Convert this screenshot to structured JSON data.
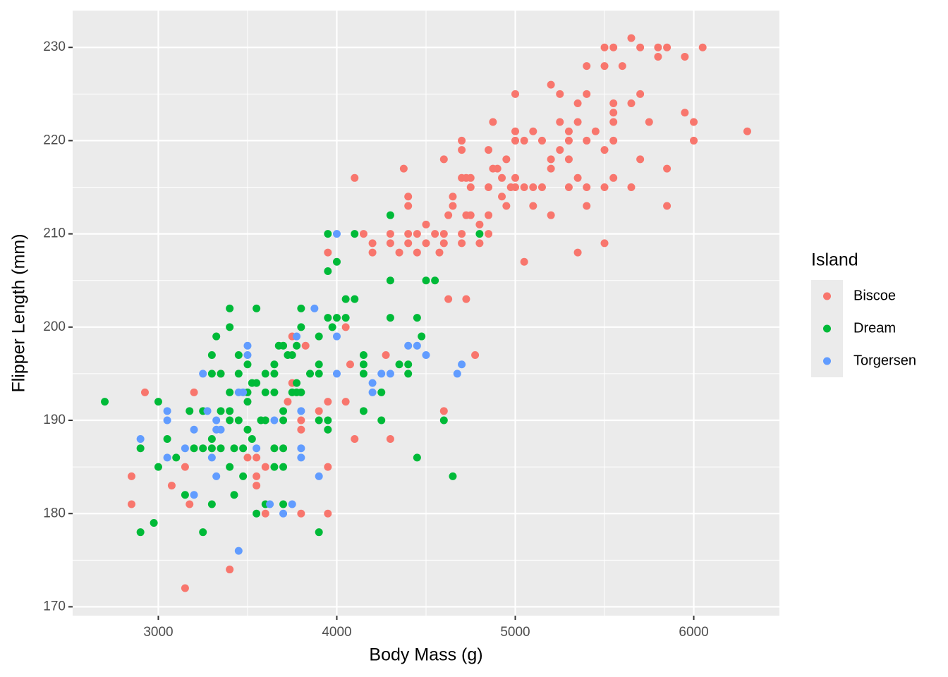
{
  "chart_data": {
    "type": "scatter",
    "x_label": "Body Mass (g)",
    "y_label": "Flipper Length (mm)",
    "legend_title": "Island",
    "xlim": [
      2520,
      6480
    ],
    "ylim": [
      169.05,
      233.95
    ],
    "xticks": [
      3000,
      4000,
      5000,
      6000
    ],
    "yticks": [
      170,
      180,
      190,
      200,
      210,
      220,
      230
    ],
    "grid": true,
    "legend_position": "right",
    "series": [
      {
        "name": "Biscoe",
        "color": "#F8766D",
        "x": [
          5650,
          5500,
          5550,
          5700,
          5800,
          5850,
          6050,
          5500,
          5600,
          5400,
          5800,
          5950,
          5000,
          5250,
          5400,
          5700,
          5200,
          5350,
          5550,
          5650,
          5550,
          5950,
          4875,
          5250,
          5350,
          5550,
          5750,
          6000,
          5000,
          5100,
          5300,
          5450,
          6300,
          4700,
          5000,
          5050,
          5150,
          5300,
          5400,
          5550,
          6000,
          4700,
          4850,
          5250,
          5500,
          4600,
          4950,
          5200,
          5300,
          5700,
          4375,
          4875,
          4900,
          5200,
          5850,
          4100,
          4700,
          4725,
          4750,
          4925,
          5000,
          5350,
          5550,
          4750,
          4850,
          4975,
          5000,
          5050,
          5100,
          5150,
          5300,
          5400,
          5500,
          5650,
          4400,
          4650,
          4925,
          4400,
          4650,
          4950,
          5100,
          5400,
          5850,
          4625,
          4725,
          4750,
          4850,
          5200,
          4500,
          4800,
          4150,
          4300,
          4400,
          4450,
          4550,
          4600,
          4700,
          4850,
          4200,
          4300,
          4400,
          4500,
          4600,
          4700,
          4800,
          5500,
          3950,
          4200,
          4350,
          4450,
          4575,
          5350,
          5050,
          4625,
          4725,
          4050,
          3825,
          3750,
          4275,
          4775,
          4075,
          3350,
          3750,
          3200,
          2925,
          3725,
          3950,
          4050,
          3900,
          4600,
          4100,
          4300,
          3800,
          3800,
          3500,
          3550,
          3150,
          3600,
          3950,
          2850,
          3550,
          3075,
          3550,
          2850,
          3175,
          3600,
          3800,
          3950,
          3400,
          3150
        ],
        "values": [
          231,
          230,
          230,
          230,
          230,
          230,
          230,
          228,
          228,
          228,
          229,
          229,
          225,
          225,
          225,
          225,
          226,
          224,
          224,
          224,
          223,
          223,
          222,
          222,
          222,
          222,
          222,
          222,
          221,
          221,
          221,
          221,
          221,
          220,
          220,
          220,
          220,
          220,
          220,
          220,
          220,
          219,
          219,
          219,
          219,
          218,
          218,
          218,
          218,
          218,
          217,
          217,
          217,
          217,
          217,
          216,
          216,
          216,
          216,
          216,
          216,
          216,
          216,
          215,
          215,
          215,
          215,
          215,
          215,
          215,
          215,
          215,
          215,
          215,
          214,
          214,
          214,
          213,
          213,
          213,
          213,
          213,
          213,
          212,
          212,
          212,
          212,
          212,
          211,
          211,
          210,
          210,
          210,
          210,
          210,
          210,
          210,
          210,
          209,
          209,
          209,
          209,
          209,
          209,
          209,
          209,
          208,
          208,
          208,
          208,
          208,
          208,
          207,
          203,
          203,
          200,
          198,
          199,
          197,
          197,
          196,
          195,
          194,
          193,
          193,
          192,
          192,
          192,
          191,
          191,
          188,
          188,
          190,
          189,
          186,
          186,
          185,
          185,
          185,
          184,
          184,
          183,
          183,
          181,
          181,
          180,
          180,
          180,
          174,
          172
        ]
      },
      {
        "name": "Dream",
        "color": "#00BA38",
        "x": [
          2700,
          3000,
          2900,
          3000,
          3050,
          3100,
          2975,
          2900,
          3250,
          3150,
          3200,
          3175,
          3250,
          3250,
          3300,
          3300,
          3300,
          3300,
          3300,
          3325,
          3350,
          3350,
          3350,
          3400,
          3400,
          3400,
          3400,
          3400,
          3400,
          3425,
          3425,
          3450,
          3450,
          3450,
          3475,
          3475,
          3500,
          3500,
          3500,
          3500,
          3525,
          3525,
          3550,
          3550,
          3550,
          3575,
          3600,
          3600,
          3600,
          3600,
          3650,
          3650,
          3650,
          3650,
          3650,
          3675,
          3700,
          3700,
          3700,
          3700,
          3700,
          3700,
          3725,
          3750,
          3750,
          3775,
          3775,
          3775,
          3800,
          3800,
          3800,
          3850,
          3900,
          3900,
          3900,
          3900,
          3900,
          3950,
          3950,
          3950,
          3950,
          3950,
          3975,
          4000,
          4000,
          4050,
          4050,
          4100,
          4100,
          4150,
          4150,
          4150,
          4150,
          4250,
          4250,
          4300,
          4300,
          4300,
          4350,
          4400,
          4400,
          4450,
          4450,
          4475,
          4500,
          4550,
          4600,
          4650,
          4800
        ],
        "values": [
          192,
          192,
          187,
          185,
          188,
          186,
          179,
          178,
          178,
          182,
          187,
          191,
          191,
          187,
          181,
          188,
          187,
          195,
          197,
          199,
          195,
          187,
          191,
          202,
          200,
          193,
          191,
          190,
          185,
          187,
          182,
          197,
          195,
          190,
          187,
          184,
          196,
          193,
          192,
          189,
          194,
          188,
          194,
          202,
          180,
          190,
          195,
          193,
          190,
          181,
          196,
          195,
          193,
          187,
          185,
          198,
          191,
          190,
          198,
          187,
          185,
          181,
          197,
          197,
          193,
          194,
          193,
          198,
          202,
          200,
          193,
          195,
          199,
          196,
          195,
          190,
          178,
          210,
          206,
          201,
          190,
          189,
          200,
          207,
          201,
          203,
          201,
          210,
          203,
          197,
          196,
          195,
          191,
          193,
          190,
          212,
          205,
          201,
          196,
          196,
          195,
          201,
          186,
          199,
          205,
          205,
          190,
          184,
          210
        ]
      },
      {
        "name": "Torgersen",
        "color": "#619CFF",
        "x": [
          2900,
          3050,
          3050,
          3050,
          3150,
          3200,
          3200,
          3250,
          3275,
          3300,
          3325,
          3325,
          3325,
          3350,
          3450,
          3475,
          3450,
          3500,
          3500,
          3550,
          3625,
          3650,
          3700,
          3750,
          3775,
          3800,
          3800,
          3800,
          3875,
          3900,
          4000,
          4000,
          4000,
          4200,
          4200,
          4250,
          4300,
          4400,
          4450,
          4500,
          4675,
          4700
        ],
        "values": [
          188,
          191,
          190,
          186,
          187,
          189,
          182,
          195,
          191,
          186,
          190,
          189,
          184,
          189,
          193,
          193,
          176,
          198,
          197,
          187,
          181,
          190,
          180,
          181,
          199,
          191,
          187,
          186,
          202,
          184,
          210,
          199,
          195,
          194,
          193,
          195,
          195,
          198,
          198,
          197,
          195,
          196
        ]
      }
    ]
  }
}
